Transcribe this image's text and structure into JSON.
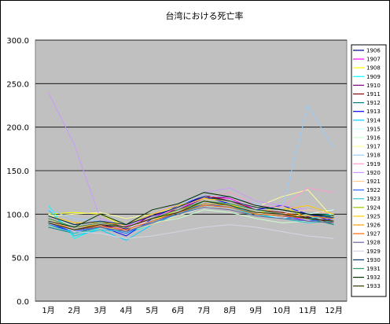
{
  "chart_data": {
    "type": "line",
    "title": "台湾における死亡率",
    "xlabel": "",
    "ylabel": "",
    "ylim": [
      0,
      300
    ],
    "yticks": [
      "0.0",
      "50.0",
      "100.0",
      "150.0",
      "200.0",
      "250.0",
      "300.0"
    ],
    "categories": [
      "1月",
      "2月",
      "3月",
      "4月",
      "5月",
      "6月",
      "7月",
      "8月",
      "9月",
      "10月",
      "11月",
      "12月"
    ],
    "grid": true,
    "legend_position": "right",
    "plot_background": "#c0c0c0",
    "series": [
      {
        "name": "1906",
        "color": "#000080",
        "values": [
          95,
          82,
          88,
          83,
          90,
          100,
          110,
          108,
          100,
          95,
          97,
          90
        ]
      },
      {
        "name": "1907",
        "color": "#ff00ff",
        "values": [
          92,
          85,
          90,
          86,
          98,
          105,
          120,
          118,
          105,
          100,
          92,
          95
        ]
      },
      {
        "name": "1908",
        "color": "#ffff00",
        "values": [
          100,
          102,
          100,
          85,
          92,
          105,
          115,
          112,
          100,
          110,
          95,
          98
        ]
      },
      {
        "name": "1909",
        "color": "#00ffff",
        "values": [
          110,
          72,
          85,
          78,
          88,
          98,
          115,
          110,
          100,
          95,
          98,
          100
        ]
      },
      {
        "name": "1910",
        "color": "#800080",
        "values": [
          90,
          82,
          88,
          80,
          100,
          105,
          118,
          120,
          110,
          105,
          100,
          92
        ]
      },
      {
        "name": "1911",
        "color": "#800000",
        "values": [
          98,
          88,
          92,
          85,
          95,
          108,
          122,
          115,
          105,
          102,
          96,
          90
        ]
      },
      {
        "name": "1912",
        "color": "#008080",
        "values": [
          85,
          78,
          85,
          80,
          90,
          102,
          112,
          110,
          100,
          98,
          95,
          88
        ]
      },
      {
        "name": "1913",
        "color": "#0000ff",
        "values": [
          88,
          80,
          86,
          75,
          95,
          110,
          120,
          112,
          105,
          110,
          100,
          95
        ]
      },
      {
        "name": "1914",
        "color": "#00ccff",
        "values": [
          105,
          75,
          82,
          70,
          88,
          100,
          112,
          108,
          102,
          100,
          95,
          98
        ]
      },
      {
        "name": "1915",
        "color": "#ccffff",
        "values": [
          100,
          85,
          88,
          85,
          92,
          98,
          108,
          110,
          102,
          95,
          100,
          105
        ]
      },
      {
        "name": "1916",
        "color": "#ccffcc",
        "values": [
          95,
          80,
          85,
          82,
          90,
          95,
          105,
          102,
          95,
          90,
          92,
          90
        ]
      },
      {
        "name": "1917",
        "color": "#ffff99",
        "values": [
          98,
          100,
          102,
          95,
          100,
          108,
          118,
          115,
          108,
          120,
          128,
          95
        ]
      },
      {
        "name": "1918",
        "color": "#99ccff",
        "values": [
          105,
          95,
          92,
          88,
          100,
          110,
          122,
          120,
          112,
          105,
          225,
          175
        ]
      },
      {
        "name": "1919",
        "color": "#ff99cc",
        "values": [
          92,
          85,
          90,
          82,
          95,
          108,
          118,
          125,
          110,
          108,
          130,
          125
        ]
      },
      {
        "name": "1920",
        "color": "#cc99ff",
        "values": [
          240,
          180,
          95,
          85,
          100,
          112,
          125,
          130,
          115,
          110,
          105,
          100
        ]
      },
      {
        "name": "1921",
        "color": "#ffcc99",
        "values": [
          95,
          82,
          85,
          80,
          88,
          98,
          110,
          108,
          100,
          100,
          105,
          100
        ]
      },
      {
        "name": "1922",
        "color": "#3366ff",
        "values": [
          90,
          80,
          85,
          78,
          92,
          100,
          112,
          108,
          100,
          98,
          92,
          95
        ]
      },
      {
        "name": "1923",
        "color": "#33cccc",
        "values": [
          88,
          78,
          82,
          80,
          90,
          100,
          110,
          108,
          98,
          95,
          90,
          92
        ]
      },
      {
        "name": "1924",
        "color": "#99cc00",
        "values": [
          95,
          85,
          88,
          85,
          95,
          105,
          115,
          112,
          105,
          100,
          95,
          92
        ]
      },
      {
        "name": "1925",
        "color": "#ffcc00",
        "values": [
          98,
          90,
          90,
          88,
          100,
          110,
          118,
          115,
          108,
          105,
          110,
          100
        ]
      },
      {
        "name": "1926",
        "color": "#ff9900",
        "values": [
          95,
          85,
          88,
          85,
          95,
          105,
          112,
          110,
          102,
          100,
          98,
          95
        ]
      },
      {
        "name": "1927",
        "color": "#ff6600",
        "values": [
          92,
          82,
          86,
          82,
          92,
          102,
          110,
          108,
          100,
          98,
          95,
          92
        ]
      },
      {
        "name": "1928",
        "color": "#666699",
        "values": [
          90,
          82,
          85,
          80,
          90,
          100,
          108,
          105,
          98,
          95,
          92,
          90
        ]
      },
      {
        "name": "1929",
        "color": "#d6d6e6",
        "values": [
          92,
          80,
          78,
          72,
          75,
          80,
          85,
          88,
          85,
          80,
          75,
          72
        ]
      },
      {
        "name": "1930",
        "color": "#003366",
        "values": [
          98,
          88,
          92,
          88,
          98,
          108,
          120,
          115,
          108,
          105,
          100,
          96
        ]
      },
      {
        "name": "1931",
        "color": "#339966",
        "values": [
          95,
          85,
          90,
          85,
          95,
          105,
          115,
          112,
          105,
          100,
          95,
          92
        ]
      },
      {
        "name": "1932",
        "color": "#003300",
        "values": [
          92,
          85,
          100,
          88,
          105,
          112,
          125,
          120,
          110,
          105,
          100,
          98
        ]
      },
      {
        "name": "1933",
        "color": "#333300",
        "values": [
          90,
          82,
          88,
          85,
          95,
          102,
          115,
          110,
          102,
          100,
          95,
          92
        ]
      }
    ]
  }
}
